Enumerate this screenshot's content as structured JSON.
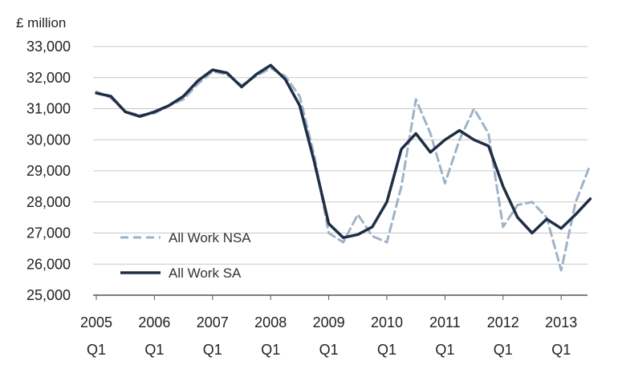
{
  "chart_data": {
    "type": "line",
    "unit_label": "£ million",
    "ylim": [
      25000,
      33000
    ],
    "y_ticks": [
      "25,000",
      "26,000",
      "27,000",
      "28,000",
      "29,000",
      "30,000",
      "31,000",
      "32,000",
      "33,000"
    ],
    "x_tick_labels": [
      [
        "2005",
        "Q1"
      ],
      [
        "2006",
        "Q1"
      ],
      [
        "2007",
        "Q1"
      ],
      [
        "2008",
        "Q1"
      ],
      [
        "2009",
        "Q1"
      ],
      [
        "2010",
        "Q1"
      ],
      [
        "2011",
        "Q1"
      ],
      [
        "2012",
        "Q1"
      ],
      [
        "2013",
        "Q1"
      ]
    ],
    "x": [
      "2005 Q1",
      "2005 Q2",
      "2005 Q3",
      "2005 Q4",
      "2006 Q1",
      "2006 Q2",
      "2006 Q3",
      "2006 Q4",
      "2007 Q1",
      "2007 Q2",
      "2007 Q3",
      "2007 Q4",
      "2008 Q1",
      "2008 Q2",
      "2008 Q3",
      "2008 Q4",
      "2009 Q1",
      "2009 Q2",
      "2009 Q3",
      "2009 Q4",
      "2010 Q1",
      "2010 Q2",
      "2010 Q3",
      "2010 Q4",
      "2011 Q1",
      "2011 Q2",
      "2011 Q3",
      "2011 Q4",
      "2012 Q1",
      "2012 Q2",
      "2012 Q3",
      "2012 Q4",
      "2013 Q1",
      "2013 Q2",
      "2013 Q3"
    ],
    "grid": true,
    "legend_position": "bottom-left",
    "series": [
      {
        "name": "All Work NSA",
        "style": "dashed",
        "color": "#9fb3c8",
        "values": [
          31550,
          31350,
          30900,
          30800,
          30850,
          31100,
          31300,
          31800,
          32200,
          32100,
          31750,
          32050,
          32300,
          32050,
          31400,
          29500,
          27000,
          26700,
          27600,
          26900,
          26700,
          28500,
          31300,
          30200,
          28600,
          30000,
          31000,
          30200,
          27200,
          27900,
          28000,
          27500,
          25800,
          28000,
          29200
        ]
      },
      {
        "name": "All Work SA",
        "style": "solid",
        "color": "#1f2e45",
        "values": [
          31500,
          31400,
          30900,
          30750,
          30900,
          31100,
          31400,
          31900,
          32250,
          32150,
          31700,
          32100,
          32400,
          31950,
          31100,
          29300,
          27300,
          26850,
          26950,
          27200,
          28000,
          29700,
          30200,
          29600,
          30000,
          30300,
          30000,
          29800,
          28500,
          27500,
          27000,
          27450,
          27150,
          27600,
          28100
        ]
      }
    ]
  }
}
